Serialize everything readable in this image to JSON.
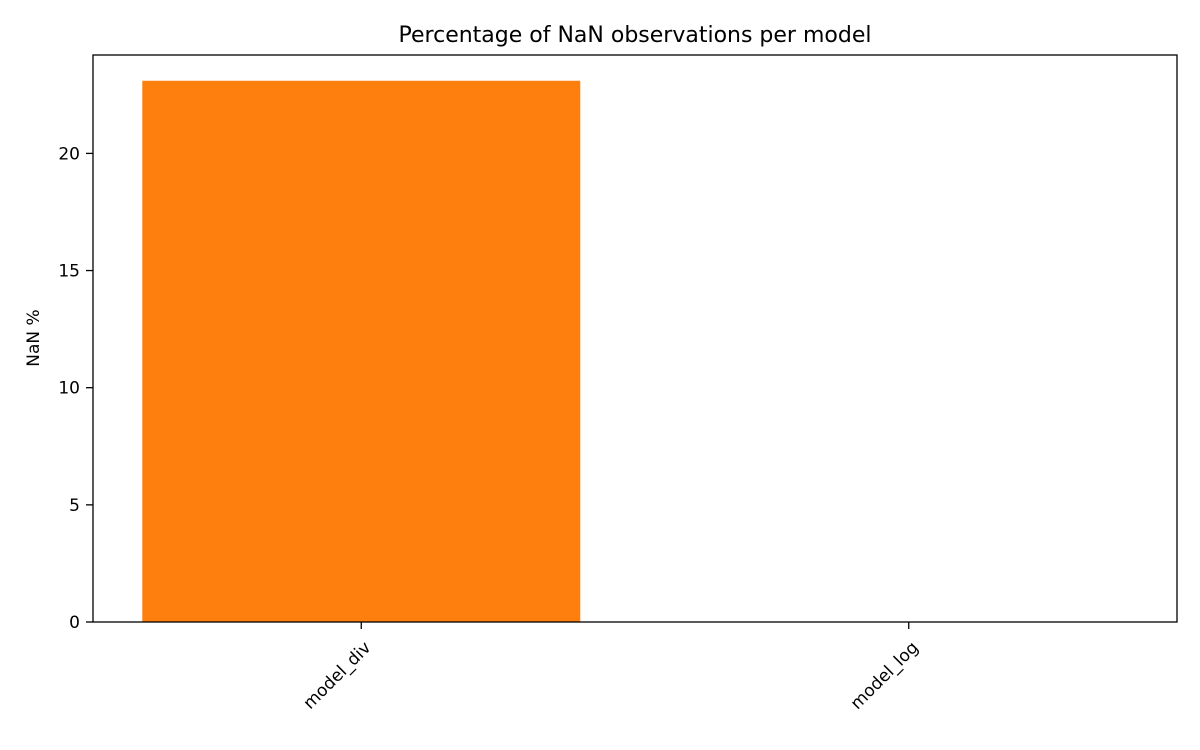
{
  "chart_data": {
    "type": "bar",
    "title": "Percentage of NaN observations per model",
    "xlabel": "",
    "ylabel": "NaN %",
    "categories": [
      "model_div",
      "model_log"
    ],
    "values": [
      23.1,
      0
    ],
    "ylim": [
      0,
      24.2
    ],
    "yticks": [
      0,
      5,
      10,
      15,
      20
    ],
    "bar_color": "#ff7f0e",
    "grid": false,
    "legend": "none"
  }
}
